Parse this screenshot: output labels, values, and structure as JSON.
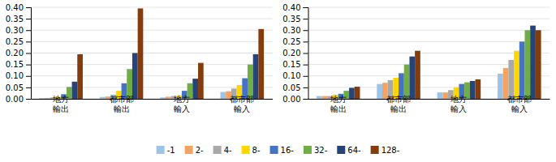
{
  "chart_data": [
    {
      "type": "bar",
      "categories": [
        [
          "地方",
          "輸出"
        ],
        [
          "都市部",
          "輸出"
        ],
        [
          "地方",
          "輸入"
        ],
        [
          "都市部",
          "輸入"
        ]
      ],
      "series": [
        {
          "name": "-1",
          "color": "#9dc3e6",
          "values": [
            0.003,
            0.008,
            0.006,
            0.03
          ]
        },
        {
          "name": "2-",
          "color": "#f4a460",
          "values": [
            0.004,
            0.01,
            0.009,
            0.033
          ]
        },
        {
          "name": "4-",
          "color": "#a9a9a9",
          "values": [
            0.006,
            0.018,
            0.012,
            0.045
          ]
        },
        {
          "name": "8-",
          "color": "#ffd700",
          "values": [
            0.009,
            0.035,
            0.015,
            0.06
          ]
        },
        {
          "name": "16-",
          "color": "#4472c4",
          "values": [
            0.02,
            0.068,
            0.035,
            0.09
          ]
        },
        {
          "name": "32-",
          "color": "#70ad47",
          "values": [
            0.052,
            0.13,
            0.068,
            0.15
          ]
        },
        {
          "name": "64-",
          "color": "#264478",
          "values": [
            0.075,
            0.2,
            0.088,
            0.195
          ]
        },
        {
          "name": "128-",
          "color": "#843c0c",
          "values": [
            0.195,
            0.395,
            0.157,
            0.305
          ]
        }
      ],
      "ylim": [
        0,
        0.4
      ],
      "yticks": [
        {
          "value": 0,
          "label": "0.00"
        },
        0.05,
        {
          "value": 0.1,
          "label": "0.10"
        },
        0.15,
        {
          "value": 0.2,
          "label": "0.20"
        },
        0.25,
        {
          "value": 0.3,
          "label": "0.30"
        },
        0.35,
        {
          "value": 0.4,
          "label": "0.40"
        }
      ],
      "grid": true,
      "legend": "bottom"
    },
    {
      "type": "bar",
      "categories": [
        [
          "地方",
          "輸出"
        ],
        [
          "都市部",
          "輸出"
        ],
        [
          "地方",
          "輸入"
        ],
        [
          "都市部",
          "輸入"
        ]
      ],
      "series": [
        {
          "name": "-1",
          "color": "#9dc3e6",
          "values": [
            0.012,
            0.065,
            0.028,
            0.11
          ]
        },
        {
          "name": "2-",
          "color": "#f4a460",
          "values": [
            0.012,
            0.07,
            0.028,
            0.135
          ]
        },
        {
          "name": "4-",
          "color": "#a9a9a9",
          "values": [
            0.012,
            0.082,
            0.038,
            0.17
          ]
        },
        {
          "name": "8-",
          "color": "#ffd700",
          "values": [
            0.018,
            0.092,
            0.05,
            0.21
          ]
        },
        {
          "name": "16-",
          "color": "#4472c4",
          "values": [
            0.022,
            0.112,
            0.065,
            0.25
          ]
        },
        {
          "name": "32-",
          "color": "#70ad47",
          "values": [
            0.035,
            0.15,
            0.072,
            0.3
          ]
        },
        {
          "name": "64-",
          "color": "#264478",
          "values": [
            0.048,
            0.185,
            0.078,
            0.32
          ]
        },
        {
          "name": "128-",
          "color": "#843c0c",
          "values": [
            0.053,
            0.21,
            0.085,
            0.3
          ]
        }
      ],
      "ylim": [
        0,
        0.4
      ],
      "yticks": [
        {
          "value": 0,
          "label": "0.00"
        },
        0.05,
        {
          "value": 0.1,
          "label": "0.10"
        },
        0.15,
        {
          "value": 0.2,
          "label": "0.20"
        },
        0.25,
        {
          "value": 0.3,
          "label": "0.30"
        },
        0.35,
        {
          "value": 0.4,
          "label": "0.40"
        }
      ],
      "grid": true
    }
  ]
}
